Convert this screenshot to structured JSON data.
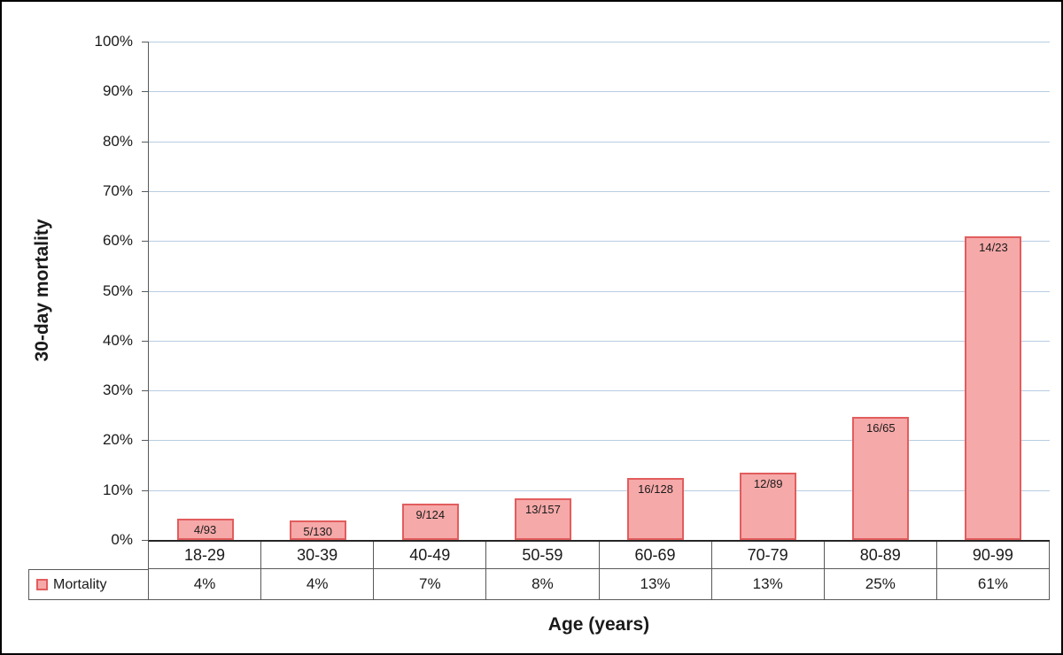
{
  "chart_data": {
    "type": "bar",
    "title": "",
    "xlabel": "Age (years)",
    "ylabel": "30-day mortality",
    "ylim": [
      0,
      100
    ],
    "yticks": [
      0,
      10,
      20,
      30,
      40,
      50,
      60,
      70,
      80,
      90,
      100
    ],
    "ytick_labels": [
      "0%",
      "10%",
      "20%",
      "30%",
      "40%",
      "50%",
      "60%",
      "70%",
      "80%",
      "90%",
      "100%"
    ],
    "categories": [
      "18-29",
      "30-39",
      "40-49",
      "50-59",
      "60-69",
      "70-79",
      "80-89",
      "90-99"
    ],
    "series": [
      {
        "name": "Mortality",
        "values_pct": [
          4.3,
          3.85,
          7.26,
          8.28,
          12.5,
          13.48,
          24.62,
          60.87
        ],
        "bar_labels": [
          "4/93",
          "5/130",
          "9/124",
          "13/157",
          "16/128",
          "12/89",
          "16/65",
          "14/23"
        ],
        "table_values": [
          "4%",
          "4%",
          "7%",
          "8%",
          "13%",
          "13%",
          "25%",
          "61%"
        ]
      }
    ],
    "grid": true,
    "legend_position": "data-table-left"
  },
  "colors": {
    "bar_fill": "#f6a9a9",
    "bar_border": "#e25d5d",
    "gridline": "#b7cde2",
    "axis_line": "#595959",
    "table_border": "#595959",
    "text": "#1a1a1a"
  }
}
